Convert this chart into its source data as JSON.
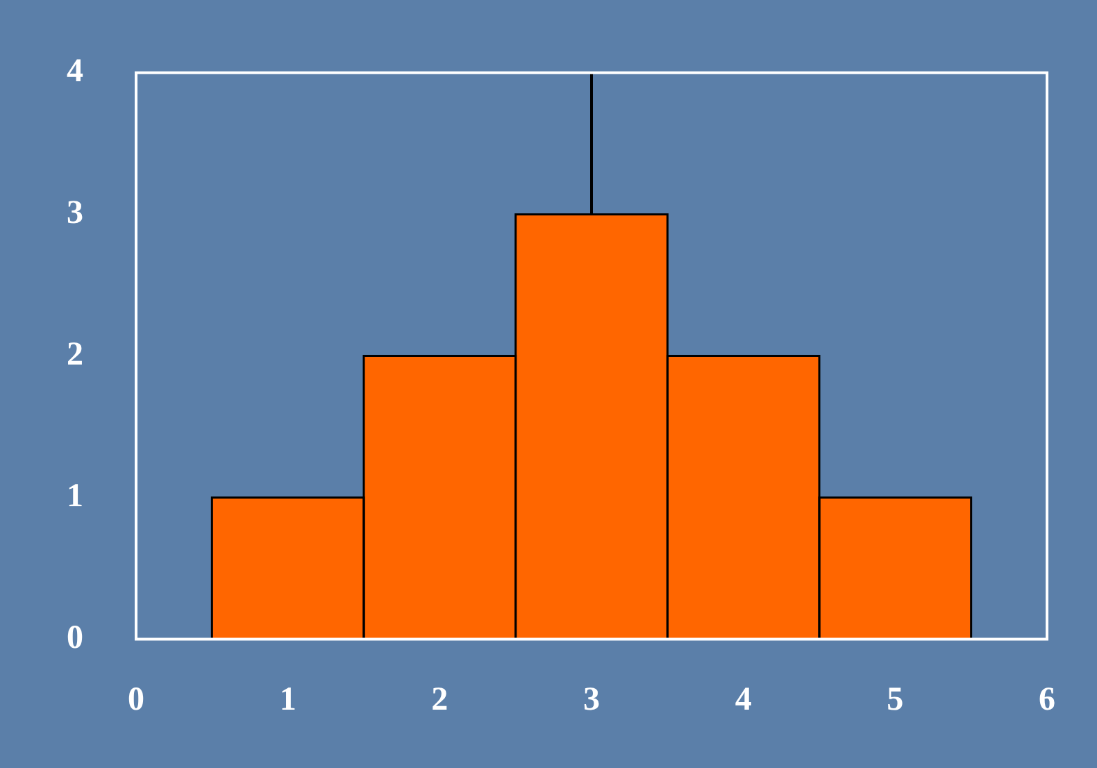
{
  "chart_data": {
    "type": "histogram",
    "bins": [
      0.5,
      1.5,
      2.5,
      3.5,
      4.5,
      5.5
    ],
    "values": [
      1,
      2,
      3,
      2,
      1
    ],
    "color": "#ff6600",
    "xlim": [
      0,
      6
    ],
    "xticks": [
      0,
      1,
      2,
      3,
      4,
      5,
      6
    ],
    "ylim": [
      0,
      4
    ],
    "yticks": [
      0,
      1,
      2,
      3,
      4
    ],
    "grid": false,
    "legend": false,
    "ref_lines": [
      {
        "axis": "x",
        "value": 3,
        "color": "#000000"
      }
    ]
  }
}
